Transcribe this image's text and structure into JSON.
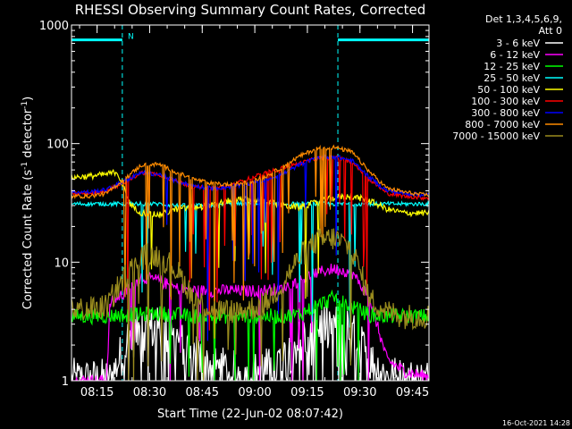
{
  "chart_data": {
    "type": "line",
    "title": "RHESSI Observing Summary Count Rates, Corrected",
    "xlabel": "Start Time (22-Jun-02 08:07:42)",
    "ylabel": "Corrected Count Rate (s⁻¹ detector⁻¹)",
    "ylabel_parts": [
      "Corrected Count Rate (s",
      "-1",
      " detector",
      "-1",
      ")"
    ],
    "yscale": "log",
    "ylim": [
      1,
      1000
    ],
    "xlim_minutes": [
      0,
      102
    ],
    "x_ticks": [
      {
        "label": "08:15",
        "minute": 7.3
      },
      {
        "label": "08:30",
        "minute": 22.3
      },
      {
        "label": "08:45",
        "minute": 37.3
      },
      {
        "label": "09:00",
        "minute": 52.3
      },
      {
        "label": "09:15",
        "minute": 67.3
      },
      {
        "label": "09:30",
        "minute": 82.3
      },
      {
        "label": "09:45",
        "minute": 97.3
      }
    ],
    "y_ticks": [
      {
        "label": "1",
        "value": 1
      },
      {
        "label": "10",
        "value": 10
      },
      {
        "label": "100",
        "value": 100
      },
      {
        "label": "1000",
        "value": 1000
      }
    ],
    "legend_header": [
      "Det 1,3,4,5,6,9,",
      "Att 0"
    ],
    "legend_position": "right",
    "footer": "16-Oct-2021 14:28",
    "annotations": [
      {
        "text": "N",
        "minute": 14.8,
        "value": 750,
        "color": "#00ffff"
      }
    ],
    "night_intervals_minutes": [
      [
        0,
        14.5
      ],
      [
        76,
        102
      ]
    ],
    "night_level": 750,
    "series": [
      {
        "name": "3 - 6 keV",
        "color": "#ffffff",
        "x": [
          0,
          10,
          11,
          16,
          20,
          25,
          30,
          35,
          40,
          45,
          50,
          55,
          60,
          65,
          70,
          75,
          80,
          85,
          90,
          95,
          100
        ],
        "y": [
          1,
          1,
          1,
          2.2,
          2.8,
          2.7,
          2.3,
          1.7,
          1.3,
          1.2,
          1.1,
          1.2,
          1.5,
          2.2,
          2.9,
          3.0,
          2.5,
          1.5,
          1.1,
          1,
          1
        ]
      },
      {
        "name": "6 - 12 keV",
        "color": "#ff00ff",
        "x": [
          0,
          10,
          11,
          16,
          20,
          25,
          30,
          35,
          40,
          45,
          50,
          55,
          60,
          65,
          70,
          75,
          80,
          85,
          90,
          95,
          100
        ],
        "y": [
          1,
          1,
          4.5,
          5.8,
          7.5,
          7.0,
          6.0,
          5.8,
          5.7,
          5.8,
          5.7,
          5.8,
          6.0,
          7.0,
          8.2,
          8.8,
          8.2,
          5.0,
          1.5,
          1.2,
          1.1
        ]
      },
      {
        "name": "12 - 25 keV",
        "color": "#00ff00",
        "x": [
          0,
          5,
          10,
          15,
          20,
          25,
          30,
          35,
          40,
          45,
          50,
          55,
          60,
          65,
          70,
          75,
          80,
          85,
          90,
          95,
          100
        ],
        "y": [
          3.5,
          3.5,
          3.5,
          3.6,
          3.6,
          3.7,
          3.6,
          3.5,
          3.5,
          3.5,
          3.5,
          3.5,
          3.5,
          3.6,
          4.3,
          5.0,
          4.2,
          3.6,
          3.5,
          3.5,
          3.5
        ]
      },
      {
        "name": "25 - 50 keV",
        "color": "#00ffff",
        "x": [
          0,
          5,
          10,
          15,
          20,
          25,
          30,
          35,
          40,
          45,
          50,
          55,
          60,
          65,
          70,
          75,
          80,
          85,
          90,
          95,
          100
        ],
        "y": [
          31,
          31,
          31,
          31,
          31,
          31,
          30,
          30,
          30,
          31,
          31,
          31,
          31,
          31,
          31,
          31,
          31,
          31,
          31,
          31,
          31
        ]
      },
      {
        "name": "50 - 100 keV",
        "color": "#ffff00",
        "x": [
          0,
          5,
          10,
          13,
          17,
          20,
          25,
          30,
          35,
          40,
          45,
          50,
          55,
          60,
          65,
          70,
          75,
          80,
          85,
          90,
          95,
          100
        ],
        "y": [
          52,
          53,
          55,
          58,
          30,
          26,
          25,
          28,
          29,
          30,
          33,
          34,
          33,
          30,
          29,
          32,
          35,
          36,
          33,
          28,
          26,
          26
        ]
      },
      {
        "name": "100 - 300 keV",
        "color": "#ff0000",
        "x": [
          0,
          5,
          10,
          15,
          20,
          25,
          30,
          35,
          40,
          45,
          50,
          55,
          60,
          65,
          70,
          75,
          80,
          85,
          90,
          95,
          100
        ],
        "y": [
          38,
          38,
          40,
          47,
          57,
          55,
          48,
          43,
          42,
          44,
          50,
          56,
          62,
          68,
          75,
          77,
          70,
          50,
          38,
          36,
          35
        ]
      },
      {
        "name": "300 - 800 keV",
        "color": "#0000ff",
        "x": [
          0,
          5,
          10,
          15,
          20,
          25,
          30,
          35,
          40,
          45,
          50,
          55,
          60,
          65,
          70,
          75,
          80,
          85,
          90,
          95,
          100
        ],
        "y": [
          39,
          39,
          41,
          48,
          57,
          55,
          48,
          44,
          42,
          43,
          45,
          49,
          55,
          66,
          76,
          78,
          72,
          52,
          40,
          38,
          37
        ]
      },
      {
        "name": "800 - 7000 keV",
        "color": "#ff8c00",
        "x": [
          0,
          5,
          10,
          15,
          20,
          25,
          30,
          35,
          40,
          45,
          50,
          55,
          60,
          65,
          70,
          75,
          80,
          85,
          90,
          95,
          100
        ],
        "y": [
          36,
          36,
          38,
          50,
          66,
          67,
          57,
          50,
          46,
          45,
          47,
          52,
          63,
          78,
          91,
          93,
          85,
          58,
          42,
          39,
          37
        ]
      },
      {
        "name": "7000 - 15000 keV",
        "color": "#9a8c1e",
        "x": [
          0,
          5,
          10,
          15,
          20,
          25,
          30,
          35,
          40,
          45,
          50,
          55,
          60,
          65,
          70,
          75,
          80,
          85,
          90,
          95,
          100
        ],
        "y": [
          4.0,
          4.0,
          4.2,
          7.5,
          11.0,
          11.5,
          8.5,
          5.0,
          4.0,
          3.8,
          4.0,
          4.4,
          6.5,
          11.0,
          15.0,
          16.0,
          13.0,
          5.0,
          3.8,
          3.5,
          3.5
        ]
      }
    ]
  }
}
